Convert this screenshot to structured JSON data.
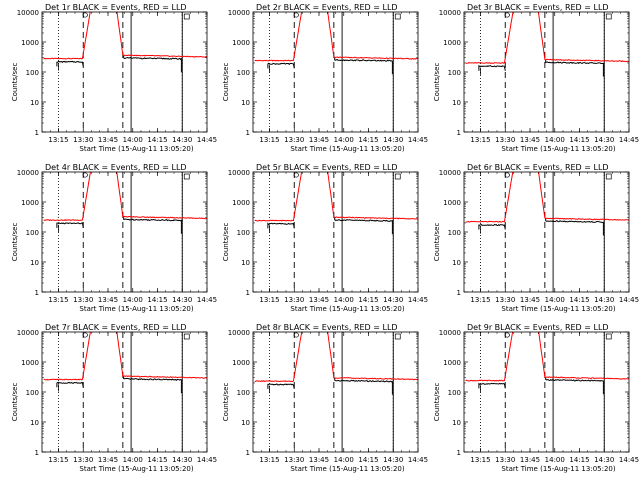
{
  "chart_data": [
    {
      "type": "line",
      "title": "Det 1r BLACK = Events, RED = LLD",
      "xlabel": "Start Time (15-Aug-11 13:05:20)",
      "ylabel": "Counts/sec",
      "yscale": "log",
      "ylim": [
        1,
        10000
      ],
      "xlim": [
        "13:05",
        "14:45"
      ],
      "x_ticks": [
        "13:15",
        "13:30",
        "13:45",
        "14:00",
        "14:15",
        "14:30",
        "14:45"
      ],
      "y_ticks": [
        "1",
        "10",
        "100",
        "1000",
        "10000"
      ],
      "base_level": 280,
      "markers": {
        "dotted": [
          "13:15",
          "14:30"
        ],
        "dashed": [
          "13:30",
          "13:54"
        ],
        "solid": [
          "13:59",
          "14:30"
        ]
      },
      "series": [
        {
          "color": "#000000"
        },
        {
          "color": "#ff0000"
        }
      ]
    },
    {
      "type": "line",
      "title": "Det 2r BLACK = Events, RED = LLD",
      "xlabel": "Start Time (15-Aug-11 13:05:20)",
      "ylabel": "Counts/sec",
      "yscale": "log",
      "ylim": [
        1,
        10000
      ],
      "xlim": [
        "13:05",
        "14:45"
      ],
      "x_ticks": [
        "13:15",
        "13:30",
        "13:45",
        "14:00",
        "14:15",
        "14:30",
        "14:45"
      ],
      "y_ticks": [
        "1",
        "10",
        "100",
        "1000",
        "10000"
      ],
      "base_level": 240,
      "markers": {
        "dotted": [
          "13:15",
          "14:30"
        ],
        "dashed": [
          "13:30",
          "13:54"
        ],
        "solid": [
          "13:59",
          "14:30"
        ]
      },
      "series": [
        {
          "color": "#000000"
        },
        {
          "color": "#ff0000"
        }
      ]
    },
    {
      "type": "line",
      "title": "Det 3r BLACK = Events, RED = LLD",
      "xlabel": "Start Time (15-Aug-11 13:05:20)",
      "ylabel": "Counts/sec",
      "yscale": "log",
      "ylim": [
        1,
        10000
      ],
      "xlim": [
        "13:05",
        "14:45"
      ],
      "x_ticks": [
        "13:15",
        "13:30",
        "13:45",
        "14:00",
        "14:15",
        "14:30",
        "14:45"
      ],
      "y_ticks": [
        "1",
        "10",
        "100",
        "1000",
        "10000"
      ],
      "base_level": 200,
      "markers": {
        "dotted": [
          "13:15",
          "14:30"
        ],
        "dashed": [
          "13:30",
          "13:54"
        ],
        "solid": [
          "13:59",
          "14:30"
        ]
      },
      "series": [
        {
          "color": "#000000"
        },
        {
          "color": "#ff0000"
        }
      ]
    },
    {
      "type": "line",
      "title": "Det 4r BLACK = Events, RED = LLD",
      "xlabel": "Start Time (15-Aug-11 13:05:20)",
      "ylabel": "Counts/sec",
      "yscale": "log",
      "ylim": [
        1,
        10000
      ],
      "xlim": [
        "13:05",
        "14:45"
      ],
      "x_ticks": [
        "13:15",
        "13:30",
        "13:45",
        "14:00",
        "14:15",
        "14:30",
        "14:45"
      ],
      "y_ticks": [
        "1",
        "10",
        "100",
        "1000",
        "10000"
      ],
      "base_level": 250,
      "markers": {
        "dotted": [
          "13:15",
          "14:30"
        ],
        "dashed": [
          "13:30",
          "13:54"
        ],
        "solid": [
          "13:59",
          "14:30"
        ]
      },
      "series": [
        {
          "color": "#000000"
        },
        {
          "color": "#ff0000"
        }
      ]
    },
    {
      "type": "line",
      "title": "Det 5r BLACK = Events, RED = LLD",
      "xlabel": "Start Time (15-Aug-11 13:05:20)",
      "ylabel": "Counts/sec",
      "yscale": "log",
      "ylim": [
        1,
        10000
      ],
      "xlim": [
        "13:05",
        "14:45"
      ],
      "x_ticks": [
        "13:15",
        "13:30",
        "13:45",
        "14:00",
        "14:15",
        "14:30",
        "14:45"
      ],
      "y_ticks": [
        "1",
        "10",
        "100",
        "1000",
        "10000"
      ],
      "base_level": 240,
      "markers": {
        "dotted": [
          "13:15",
          "14:30"
        ],
        "dashed": [
          "13:30",
          "13:54"
        ],
        "solid": [
          "13:59",
          "14:30"
        ]
      },
      "series": [
        {
          "color": "#000000"
        },
        {
          "color": "#ff0000"
        }
      ]
    },
    {
      "type": "line",
      "title": "Det 6r BLACK = Events, RED = LLD",
      "xlabel": "Start Time (15-Aug-11 13:05:20)",
      "ylabel": "Counts/sec",
      "yscale": "log",
      "ylim": [
        1,
        10000
      ],
      "xlim": [
        "13:05",
        "14:45"
      ],
      "x_ticks": [
        "13:15",
        "13:30",
        "13:45",
        "14:00",
        "14:15",
        "14:30",
        "14:45"
      ],
      "y_ticks": [
        "1",
        "10",
        "100",
        "1000",
        "10000"
      ],
      "base_level": 220,
      "markers": {
        "dotted": [
          "13:15",
          "14:30"
        ],
        "dashed": [
          "13:30",
          "13:54"
        ],
        "solid": [
          "13:59",
          "14:30"
        ]
      },
      "series": [
        {
          "color": "#000000"
        },
        {
          "color": "#ff0000"
        }
      ]
    },
    {
      "type": "line",
      "title": "Det 7r BLACK = Events, RED = LLD",
      "xlabel": "Start Time (15-Aug-11 13:05:20)",
      "ylabel": "Counts/sec",
      "yscale": "log",
      "ylim": [
        1,
        10000
      ],
      "xlim": [
        "13:05",
        "14:45"
      ],
      "x_ticks": [
        "13:15",
        "13:30",
        "13:45",
        "14:00",
        "14:15",
        "14:30",
        "14:45"
      ],
      "y_ticks": [
        "1",
        "10",
        "100",
        "1000",
        "10000"
      ],
      "base_level": 260,
      "markers": {
        "dotted": [
          "13:15",
          "14:30"
        ],
        "dashed": [
          "13:30",
          "13:54"
        ],
        "solid": [
          "13:59",
          "14:30"
        ]
      },
      "series": [
        {
          "color": "#000000"
        },
        {
          "color": "#ff0000"
        }
      ]
    },
    {
      "type": "line",
      "title": "Det 8r BLACK = Events, RED = LLD",
      "xlabel": "Start Time (15-Aug-11 13:05:20)",
      "ylabel": "Counts/sec",
      "yscale": "log",
      "ylim": [
        1,
        10000
      ],
      "xlim": [
        "13:05",
        "14:45"
      ],
      "x_ticks": [
        "13:15",
        "13:30",
        "13:45",
        "14:00",
        "14:15",
        "14:30",
        "14:45"
      ],
      "y_ticks": [
        "1",
        "10",
        "100",
        "1000",
        "10000"
      ],
      "base_level": 230,
      "markers": {
        "dotted": [
          "13:15",
          "14:30"
        ],
        "dashed": [
          "13:30",
          "13:54"
        ],
        "solid": [
          "13:59",
          "14:30"
        ]
      },
      "series": [
        {
          "color": "#000000"
        },
        {
          "color": "#ff0000"
        }
      ]
    },
    {
      "type": "line",
      "title": "Det 9r BLACK = Events, RED = LLD",
      "xlabel": "Start Time (15-Aug-11 13:05:20)",
      "ylabel": "Counts/sec",
      "yscale": "log",
      "ylim": [
        1,
        10000
      ],
      "xlim": [
        "13:05",
        "14:45"
      ],
      "x_ticks": [
        "13:15",
        "13:30",
        "13:45",
        "14:00",
        "14:15",
        "14:30",
        "14:45"
      ],
      "y_ticks": [
        "1",
        "10",
        "100",
        "1000",
        "10000"
      ],
      "base_level": 240,
      "markers": {
        "dotted": [
          "13:15",
          "14:30"
        ],
        "dashed": [
          "13:30",
          "13:54"
        ],
        "solid": [
          "13:59",
          "14:30"
        ]
      },
      "series": [
        {
          "color": "#000000"
        },
        {
          "color": "#ff0000"
        }
      ]
    }
  ]
}
